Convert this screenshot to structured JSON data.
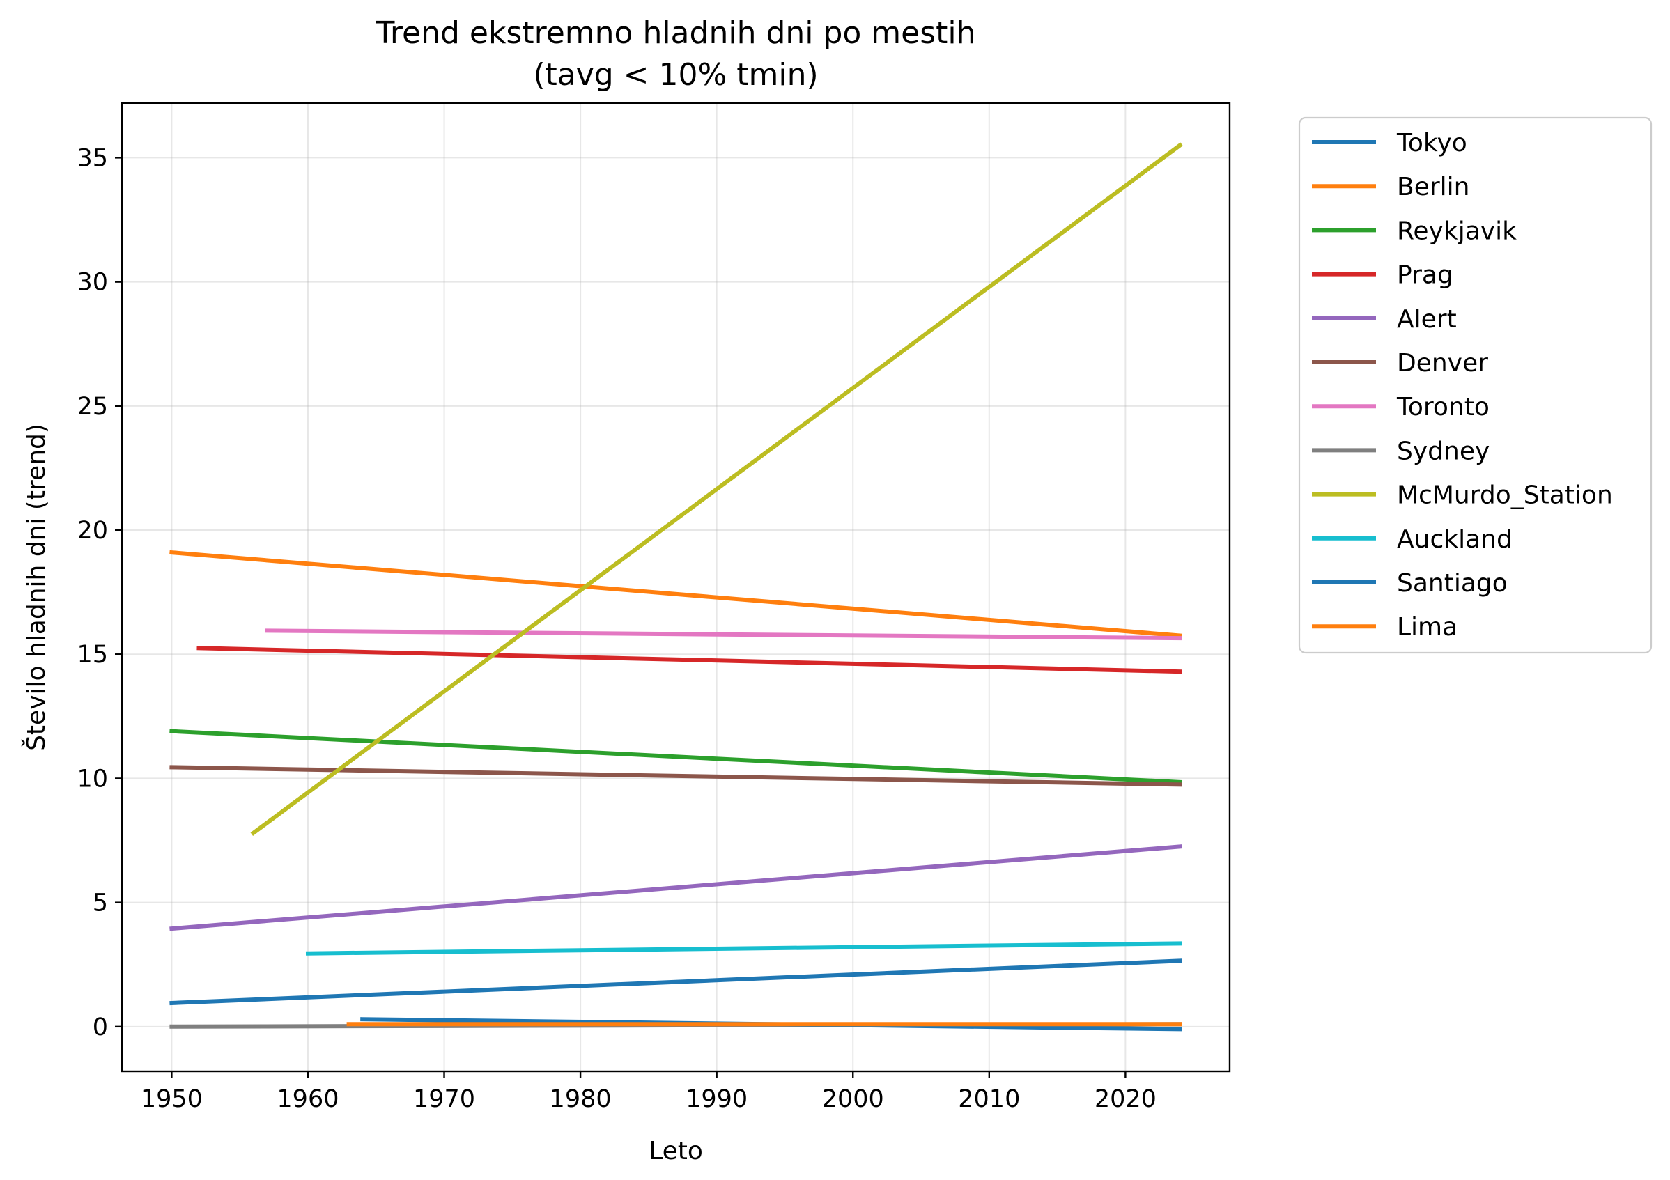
{
  "chart_data": {
    "type": "line",
    "title_line1": "Trend ekstremno hladnih dni po mestih",
    "title_line2": "(tavg < 10% tmin)",
    "xlabel": "Leto",
    "ylabel": "Število hladnih dni (trend)",
    "xlim": [
      1946.35,
      2027.65
    ],
    "ylim": [
      -1.8,
      37.2
    ],
    "x_ticks": [
      1950,
      1960,
      1970,
      1980,
      1990,
      2000,
      2010,
      2020
    ],
    "y_ticks": [
      0,
      5,
      10,
      15,
      20,
      25,
      30,
      35
    ],
    "grid": true,
    "legend_position": "outside-right",
    "series": [
      {
        "name": "Tokyo",
        "color": "#1f77b4",
        "x": [
          1950,
          2024
        ],
        "y": [
          0.95,
          2.65
        ]
      },
      {
        "name": "Berlin",
        "color": "#ff7f0e",
        "x": [
          1950,
          2024
        ],
        "y": [
          19.1,
          15.75
        ]
      },
      {
        "name": "Reykjavik",
        "color": "#2ca02c",
        "x": [
          1950,
          2024
        ],
        "y": [
          11.9,
          9.85
        ]
      },
      {
        "name": "Prag",
        "color": "#d62728",
        "x": [
          1952,
          2024
        ],
        "y": [
          15.25,
          14.3
        ]
      },
      {
        "name": "Alert",
        "color": "#9467bd",
        "x": [
          1950,
          2024
        ],
        "y": [
          3.95,
          7.25
        ]
      },
      {
        "name": "Denver",
        "color": "#8c564b",
        "x": [
          1950,
          2024
        ],
        "y": [
          10.45,
          9.75
        ]
      },
      {
        "name": "Toronto",
        "color": "#e377c2",
        "x": [
          1957,
          2024
        ],
        "y": [
          15.95,
          15.65
        ]
      },
      {
        "name": "Sydney",
        "color": "#7f7f7f",
        "x": [
          1950,
          2024
        ],
        "y": [
          0.0,
          0.1
        ]
      },
      {
        "name": "McMurdo_Station",
        "color": "#bcbd22",
        "x": [
          1956,
          2024
        ],
        "y": [
          7.8,
          35.5
        ]
      },
      {
        "name": "Auckland",
        "color": "#17becf",
        "x": [
          1960,
          2024
        ],
        "y": [
          2.95,
          3.35
        ]
      },
      {
        "name": "Santiago",
        "color": "#1f77b4",
        "x": [
          1964,
          2024
        ],
        "y": [
          0.3,
          -0.1
        ]
      },
      {
        "name": "Lima",
        "color": "#ff7f0e",
        "x": [
          1963,
          2024
        ],
        "y": [
          0.1,
          0.1
        ]
      }
    ]
  }
}
